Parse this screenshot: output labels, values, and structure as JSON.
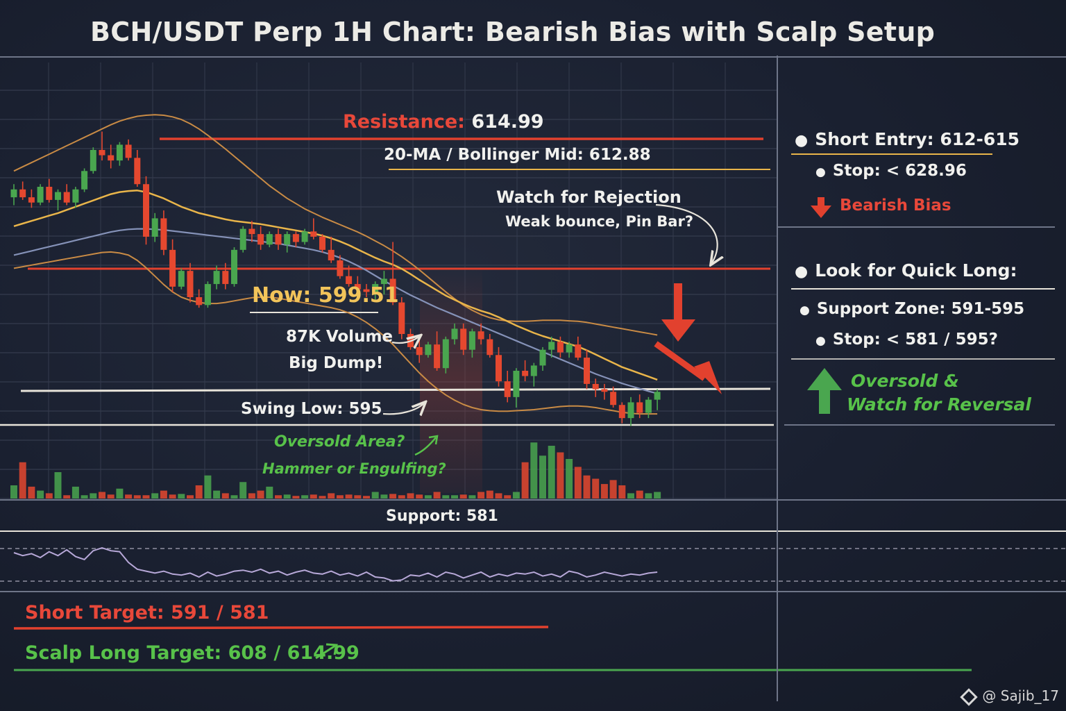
{
  "title": "BCH/USDT Perp 1H Chart: Bearish Bias with Scalp Setup",
  "labels": {
    "resistance_word": "Resistance:",
    "resistance_value": "614.99",
    "ma_mid": "20-MA / Bollinger Mid: 612.88",
    "watch_rejection": "Watch for Rejection",
    "weak_bounce": "Weak bounce, Pin Bar?",
    "now_word": "Now:",
    "now_value": "599.51",
    "volume_note": "87K Volume",
    "big_dump": "Big Dump!",
    "swing_low": "Swing Low: 595",
    "oversold_area": "Oversold Area?",
    "hammer": "Hammer or Engulfing?",
    "support": "Support: 581",
    "short_target": "Short Target: 591 / 581",
    "scalp_long_target": "Scalp Long Target: 608 / 614.99"
  },
  "panel": {
    "short_entry": "Short Entry: 612-615",
    "stop_short": "Stop: < 628.96",
    "bearish_bias": "Bearish Bias",
    "quick_long": "Look for Quick Long:",
    "support_zone": "Support Zone: 591-595",
    "stop_long": "Stop: < 581 / 595?",
    "oversold": "Oversold &",
    "reversal": "Watch for Reversal"
  },
  "watermark": "@ Sajib_17",
  "colors": {
    "up": "#4aa64f",
    "down": "#e5482f",
    "resistance": "#e2412e",
    "ma": "#e9b54a",
    "ma_slow": "#8592b8",
    "bollinger": "#c98b45",
    "support": "#e8e4da",
    "rsi": "#b7a8d8"
  },
  "chart_data": {
    "type": "candlestick",
    "series": [
      {
        "name": "price",
        "ohlc": [
          [
            607.0,
            609.5,
            605.5,
            608.5
          ],
          [
            608.5,
            610.0,
            606.5,
            607.0
          ],
          [
            607.0,
            608.5,
            605.0,
            606.0
          ],
          [
            606.0,
            609.5,
            605.5,
            609.0
          ],
          [
            609.0,
            610.5,
            606.0,
            606.5
          ],
          [
            606.5,
            608.5,
            604.5,
            608.0
          ],
          [
            608.0,
            609.5,
            605.5,
            606.0
          ],
          [
            606.0,
            609.0,
            605.0,
            608.5
          ],
          [
            608.5,
            612.5,
            608.0,
            612.0
          ],
          [
            612.0,
            616.5,
            611.5,
            616.0
          ],
          [
            616.0,
            619.5,
            614.0,
            615.0
          ],
          [
            615.0,
            617.0,
            612.5,
            614.0
          ],
          [
            614.0,
            617.5,
            613.0,
            617.0
          ],
          [
            617.0,
            618.0,
            614.0,
            614.5
          ],
          [
            614.5,
            616.0,
            609.0,
            609.5
          ],
          [
            609.5,
            611.0,
            598.0,
            599.5
          ],
          [
            599.5,
            604.0,
            598.5,
            603.0
          ],
          [
            603.0,
            604.5,
            596.0,
            597.0
          ],
          [
            597.0,
            599.0,
            589.0,
            590.0
          ],
          [
            590.0,
            593.5,
            589.5,
            593.0
          ],
          [
            593.0,
            594.5,
            587.0,
            588.0
          ],
          [
            588.0,
            589.5,
            586.0,
            586.5
          ],
          [
            586.5,
            591.0,
            586.0,
            590.5
          ],
          [
            590.5,
            594.0,
            589.5,
            593.0
          ],
          [
            593.0,
            594.5,
            589.5,
            590.5
          ],
          [
            590.5,
            597.5,
            590.0,
            597.0
          ],
          [
            597.0,
            601.5,
            596.5,
            601.0
          ],
          [
            601.0,
            602.5,
            598.5,
            600.0
          ],
          [
            600.0,
            601.5,
            597.0,
            598.0
          ],
          [
            598.0,
            600.5,
            597.5,
            600.0
          ],
          [
            600.0,
            601.0,
            597.0,
            598.0
          ],
          [
            598.0,
            600.5,
            596.5,
            600.0
          ],
          [
            600.0,
            600.5,
            597.5,
            598.5
          ],
          [
            598.5,
            601.0,
            598.0,
            600.5
          ],
          [
            600.5,
            603.0,
            599.0,
            599.5
          ],
          [
            599.5,
            600.0,
            596.5,
            597.0
          ],
          [
            597.0,
            599.5,
            594.5,
            595.0
          ],
          [
            595.0,
            596.0,
            591.5,
            592.0
          ],
          [
            592.0,
            594.0,
            590.0,
            590.5
          ],
          [
            590.5,
            592.0,
            588.5,
            589.5
          ],
          [
            589.5,
            590.5,
            588.0,
            589.0
          ],
          [
            589.0,
            591.0,
            587.5,
            590.5
          ],
          [
            590.5,
            593.0,
            588.5,
            591.5
          ],
          [
            591.5,
            598.5,
            586.5,
            587.0
          ],
          [
            587.0,
            588.0,
            580.0,
            581.0
          ],
          [
            581.0,
            582.0,
            578.0,
            578.5
          ],
          [
            578.5,
            580.0,
            575.5,
            577.0
          ],
          [
            577.0,
            579.5,
            576.5,
            579.0
          ],
          [
            579.0,
            581.5,
            574.0,
            574.5
          ],
          [
            574.5,
            580.5,
            573.5,
            580.0
          ],
          [
            580.0,
            583.0,
            579.0,
            582.0
          ],
          [
            582.0,
            583.0,
            577.0,
            578.0
          ],
          [
            578.0,
            582.0,
            576.5,
            581.5
          ],
          [
            581.5,
            583.0,
            579.0,
            580.0
          ],
          [
            580.0,
            581.0,
            576.5,
            577.0
          ],
          [
            577.0,
            578.5,
            571.0,
            572.0
          ],
          [
            572.0,
            574.0,
            568.0,
            569.0
          ],
          [
            569.0,
            574.5,
            567.0,
            574.0
          ],
          [
            574.0,
            576.0,
            572.0,
            573.0
          ],
          [
            573.0,
            575.5,
            571.0,
            575.0
          ],
          [
            575.0,
            578.5,
            574.0,
            578.0
          ],
          [
            578.0,
            580.5,
            576.5,
            579.5
          ],
          [
            579.5,
            580.5,
            576.5,
            577.5
          ],
          [
            577.5,
            579.5,
            576.5,
            579.0
          ],
          [
            579.0,
            580.5,
            576.0,
            576.5
          ],
          [
            576.5,
            578.0,
            570.5,
            571.5
          ],
          [
            571.5,
            572.5,
            569.0,
            570.5
          ],
          [
            570.5,
            571.5,
            568.5,
            570.0
          ],
          [
            570.0,
            571.0,
            567.0,
            567.5
          ],
          [
            567.5,
            568.0,
            564.0,
            565.0
          ],
          [
            565.0,
            569.0,
            563.5,
            568.0
          ],
          [
            568.0,
            569.5,
            565.0,
            566.0
          ],
          [
            566.0,
            569.0,
            565.0,
            568.5
          ],
          [
            568.5,
            570.5,
            566.5,
            570.0
          ]
        ]
      },
      {
        "name": "20-MA",
        "values": [
          601.5,
          602.0,
          602.5,
          603.0,
          603.5,
          604.0,
          604.6,
          605.2,
          605.8,
          606.4,
          607.0,
          607.6,
          608.0,
          608.2,
          608.3,
          608.0,
          607.4,
          606.8,
          606.0,
          605.2,
          604.6,
          604.0,
          603.6,
          603.2,
          602.8,
          602.5,
          602.3,
          602.1,
          601.9,
          601.6,
          601.3,
          601.0,
          600.7,
          600.4,
          600.1,
          599.7,
          599.2,
          598.6,
          597.9,
          597.1,
          596.3,
          595.5,
          594.8,
          594.2,
          593.4,
          592.4,
          591.3,
          590.3,
          589.3,
          588.3,
          587.5,
          586.7,
          586.0,
          585.4,
          584.9,
          584.2,
          583.4,
          582.6,
          581.9,
          581.2,
          580.6,
          580.1,
          579.6,
          579.1,
          578.6,
          577.9,
          577.1,
          576.3,
          575.5,
          574.7,
          574.1,
          573.5,
          572.9,
          572.3
        ]
      },
      {
        "name": "50-MA",
        "values": [
          596.0,
          596.4,
          596.8,
          597.2,
          597.6,
          598.0,
          598.4,
          598.8,
          599.2,
          599.6,
          600.0,
          600.4,
          600.7,
          600.9,
          601.0,
          601.0,
          600.9,
          600.8,
          600.6,
          600.4,
          600.2,
          600.0,
          599.8,
          599.6,
          599.4,
          599.2,
          599.0,
          598.8,
          598.6,
          598.4,
          598.2,
          597.9,
          597.6,
          597.3,
          597.0,
          596.6,
          596.1,
          595.5,
          594.8,
          594.0,
          593.1,
          592.1,
          591.1,
          590.2,
          589.3,
          588.4,
          587.6,
          586.8,
          586.0,
          585.3,
          584.6,
          583.9,
          583.2,
          582.5,
          581.8,
          581.1,
          580.4,
          579.7,
          579.0,
          578.3,
          577.6,
          576.9,
          576.2,
          575.5,
          574.8,
          574.1,
          573.4,
          572.8,
          572.2,
          571.6,
          571.1,
          570.6,
          570.1,
          569.7
        ]
      },
      {
        "name": "bollinger_upper",
        "values": [
          612.0,
          612.8,
          613.6,
          614.4,
          615.2,
          616.0,
          616.8,
          617.6,
          618.4,
          619.2,
          620.0,
          620.8,
          621.5,
          622.0,
          622.4,
          622.6,
          622.7,
          622.6,
          622.3,
          621.8,
          621.0,
          620.0,
          618.8,
          617.5,
          616.2,
          614.8,
          613.4,
          612.0,
          610.6,
          609.2,
          608.0,
          606.8,
          605.8,
          604.8,
          604.0,
          603.2,
          602.5,
          601.8,
          601.1,
          600.4,
          599.6,
          598.7,
          597.8,
          596.8,
          595.7,
          594.5,
          593.2,
          591.8,
          590.4,
          589.0,
          587.7,
          586.5,
          585.5,
          584.7,
          584.1,
          583.7,
          583.5,
          583.4,
          583.4,
          583.5,
          583.6,
          583.6,
          583.6,
          583.5,
          583.4,
          583.2,
          582.9,
          582.6,
          582.3,
          582.0,
          581.7,
          581.4,
          581.1,
          580.8
        ]
      },
      {
        "name": "bollinger_lower",
        "values": [
          593.5,
          593.8,
          594.1,
          594.4,
          594.7,
          595.0,
          595.3,
          595.6,
          595.9,
          596.2,
          596.5,
          596.6,
          596.4,
          596.0,
          595.0,
          593.6,
          592.0,
          590.4,
          589.0,
          588.0,
          587.4,
          587.0,
          586.8,
          586.8,
          587.0,
          587.3,
          587.6,
          587.9,
          588.0,
          588.0,
          587.8,
          587.5,
          587.2,
          586.9,
          586.6,
          586.3,
          586.0,
          585.6,
          585.0,
          584.2,
          583.2,
          582.0,
          580.6,
          579.0,
          577.2,
          575.4,
          573.6,
          572.0,
          570.6,
          569.4,
          568.4,
          567.6,
          567.0,
          566.6,
          566.4,
          566.3,
          566.3,
          566.4,
          566.5,
          566.6,
          566.8,
          567.0,
          567.2,
          567.3,
          567.3,
          567.2,
          567.0,
          566.7,
          566.4,
          566.1,
          565.9,
          565.8,
          565.8,
          565.8
        ]
      },
      {
        "name": "volume",
        "values": [
          0.2,
          0.55,
          0.18,
          0.12,
          0.08,
          0.4,
          0.05,
          0.18,
          0.05,
          0.08,
          0.1,
          0.06,
          0.15,
          0.06,
          0.05,
          0.05,
          0.08,
          0.12,
          0.06,
          0.07,
          0.05,
          0.2,
          0.35,
          0.12,
          0.08,
          0.05,
          0.25,
          0.08,
          0.12,
          0.18,
          0.05,
          0.06,
          0.04,
          0.05,
          0.06,
          0.04,
          0.08,
          0.05,
          0.06,
          0.05,
          0.04,
          0.1,
          0.06,
          0.07,
          0.05,
          0.08,
          0.06,
          0.05,
          0.1,
          0.05,
          0.05,
          0.06,
          0.05,
          0.1,
          0.12,
          0.08,
          0.05,
          0.1,
          0.55,
          0.85,
          0.65,
          0.8,
          0.7,
          0.6,
          0.48,
          0.35,
          0.3,
          0.22,
          0.28,
          0.2,
          0.08,
          0.12,
          0.08,
          0.1
        ]
      },
      {
        "name": "rsi",
        "values": [
          55,
          52,
          54,
          50,
          56,
          52,
          58,
          51,
          48,
          57,
          60,
          57,
          56,
          45,
          38,
          36,
          34,
          36,
          33,
          32,
          34,
          30,
          35,
          31,
          33,
          36,
          37,
          35,
          38,
          34,
          36,
          32,
          35,
          37,
          34,
          33,
          36,
          32,
          34,
          31,
          35,
          30,
          29,
          26,
          27,
          32,
          31,
          34,
          30,
          35,
          33,
          29,
          32,
          35,
          30,
          33,
          31,
          34,
          33,
          35,
          31,
          33,
          30,
          36,
          34,
          30,
          32,
          35,
          33,
          31,
          33,
          32,
          34,
          35
        ]
      }
    ],
    "levels": [
      {
        "label": "Resistance",
        "value": 614.99
      },
      {
        "label": "20-MA / Bollinger Mid",
        "value": 612.88
      },
      {
        "label": "Now",
        "value": 599.51
      },
      {
        "label": "Swing Low",
        "value": 595
      },
      {
        "label": "Support",
        "value": 581
      }
    ],
    "price_range": [
      560,
      630
    ],
    "grid": true,
    "legend": "none"
  }
}
